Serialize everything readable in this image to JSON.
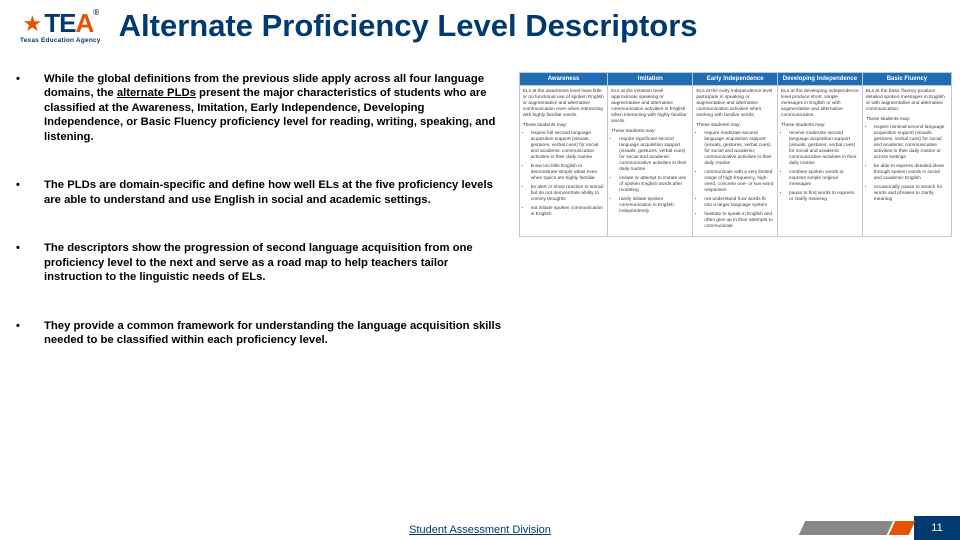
{
  "logo": {
    "text": "TEA",
    "subtitle": "Texas Education Agency"
  },
  "title": "Alternate Proficiency Level Descriptors",
  "bullets": [
    {
      "pre": "While the global definitions from the previous slide apply across all four language domains, the ",
      "underlined": "alternate PLDs",
      "post": " present the major characteristics of students who are classified at the Awareness, Imitation, Early Independence, Developing Independence, or Basic Fluency proficiency level for reading, writing, speaking, and listening."
    },
    {
      "pre": "The PLDs are domain-specific and define how well ELs at the five proficiency levels are able to understand and use English in social and academic settings.",
      "underlined": "",
      "post": ""
    },
    {
      "pre": "The descriptors show the progression of second language acquisition from one proficiency level to the next and serve as a road map to help teachers tailor instruction to the linguistic needs of ELs.",
      "underlined": "",
      "post": ""
    },
    {
      "pre": "They provide a common framework for understanding the language acquisition skills needed to be classified within each proficiency level.",
      "underlined": "",
      "post": ""
    }
  ],
  "table": {
    "headers": [
      "Awareness",
      "Imitation",
      "Early Independence",
      "Developing Independence",
      "Basic Fluency"
    ],
    "intro": [
      "ELs at the awareness level have little or no functional use of spoken English or augmentative and alternative communication even when interacting with highly familiar words.",
      "ELs at the imitation level approximate speaking or augmentative and alternative communication activities in English when interacting with highly familiar words.",
      "ELs at the early independence level participate in speaking or augmentative and alternative communication activities when working with familiar words.",
      "ELs at the developing independence level produce short, simple messages in English or with augmentative and alternative communication.",
      "ELs at the basic fluency produce detailed spoken messages in English or with augmentative and alternative communication."
    ],
    "sub": "These students may:",
    "rows": [
      [
        "require full second language acquisition support (visuals, gestures, verbal cues) for social and academic communication activities in their daily routine",
        "require significant second language acquisition support (visuals, gestures, verbal cues) for social and academic communicative activities in their daily routine",
        "require moderate second language acquisition support (visuals, gestures, verbal cues) for social and academic communicative activities in their daily routine",
        "receive moderate second language acquisition support (visuals, gestures, verbal cues) for social and academic communicative activities in their daily routine",
        "require minimal second language acquisition support (visuals, gestures, verbal cues) for social and academic communicative activities in their daily routine or across settings"
      ],
      [
        "know too little English to demonstrate simple ideas even when topics are highly familiar",
        "imitate or attempt to imitate use of spoken English words after modeling",
        "communicate with a very limited range of high-frequency, high-need, concrete one- or two-word responses",
        "combine spoken words to express simple original messages",
        "be able to express detailed ideas through spoken words in social and academic English"
      ],
      [
        "be alert or show reaction to stimuli but do not demonstrate ability to convey thoughts",
        "rarely initiate spoken communication in English independently",
        "not understand how words fit into a larger language system",
        "pause to find words to express or clarify meaning",
        "occasionally pause to search for words and phrases to clarify meaning"
      ],
      [
        "not initiate spoken communication in English",
        "",
        "hesitate to speak in English and often give up in their attempts to communicate",
        "",
        ""
      ]
    ]
  },
  "footer": {
    "center": "Student Assessment Division",
    "page": "11"
  },
  "colors": {
    "navy": "#003a70",
    "orange": "#e35205",
    "tableHeader": "#1f6db5"
  }
}
